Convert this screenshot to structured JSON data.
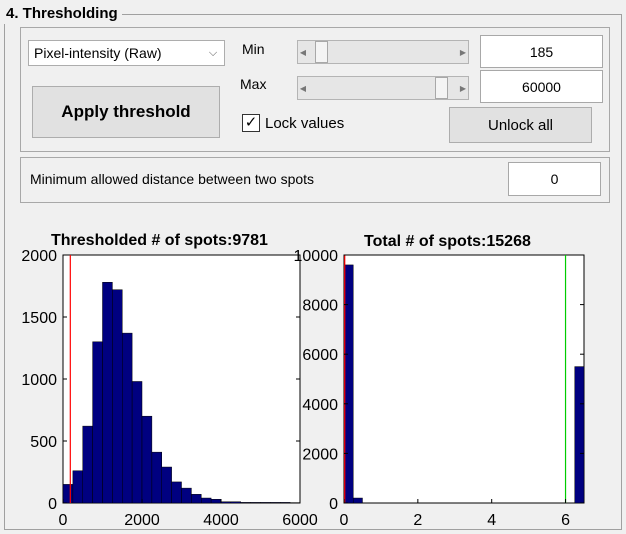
{
  "section": {
    "title": "4. Thresholding"
  },
  "controls": {
    "intensity_select": {
      "selected": "Pixel-intensity (Raw)"
    },
    "min_label": "Min",
    "max_label": "Max",
    "min_value": "185",
    "max_value": "60000",
    "min_slider_fraction": 0.05,
    "max_slider_fraction": 0.93,
    "apply_button_label": "Apply threshold",
    "lock_values": {
      "label": "Lock values",
      "checked": true,
      "check_glyph": "✓"
    },
    "unlock_button_label": "Unlock all"
  },
  "distance": {
    "label": "Minimum allowed distance between two spots",
    "value": "0"
  },
  "colors": {
    "bar": "#000080",
    "threshold_line_red": "#ff0000",
    "threshold_line_green": "#00cc00"
  },
  "chart_data": [
    {
      "type": "bar",
      "title": "Thresholded # of spots:9781",
      "bin_width": 250,
      "bins_start": [
        0,
        250,
        500,
        750,
        1000,
        1250,
        1500,
        1750,
        2000,
        2250,
        2500,
        2750,
        3000,
        3250,
        3500,
        3750,
        4000,
        4250,
        4500,
        4750,
        5000,
        5250,
        5500,
        5750
      ],
      "values": [
        150,
        260,
        620,
        1300,
        1780,
        1720,
        1370,
        980,
        700,
        410,
        290,
        170,
        120,
        70,
        40,
        30,
        10,
        10,
        5,
        5,
        5,
        5,
        5,
        3
      ],
      "xlim": [
        0,
        6000
      ],
      "ylim": [
        0,
        2000
      ],
      "xticks": [
        0,
        2000,
        4000,
        6000
      ],
      "yticks": [
        0,
        500,
        1000,
        1500,
        2000
      ],
      "vlines": [
        {
          "x": 185,
          "color": "#ff0000"
        }
      ]
    },
    {
      "type": "bar",
      "title": "Total # of spots:15268",
      "bin_width": 0.25,
      "bins_start": [
        0,
        0.25,
        6.25
      ],
      "values": [
        9600,
        200,
        5500
      ],
      "xlim": [
        0,
        6.5
      ],
      "ylim": [
        0,
        10000
      ],
      "xticks": [
        0,
        2,
        4,
        6
      ],
      "yticks": [
        0,
        2000,
        4000,
        6000,
        8000,
        10000
      ],
      "vlines": [
        {
          "x": 0.02,
          "color": "#ff0000"
        },
        {
          "x": 6.0,
          "color": "#00cc00"
        }
      ]
    }
  ]
}
